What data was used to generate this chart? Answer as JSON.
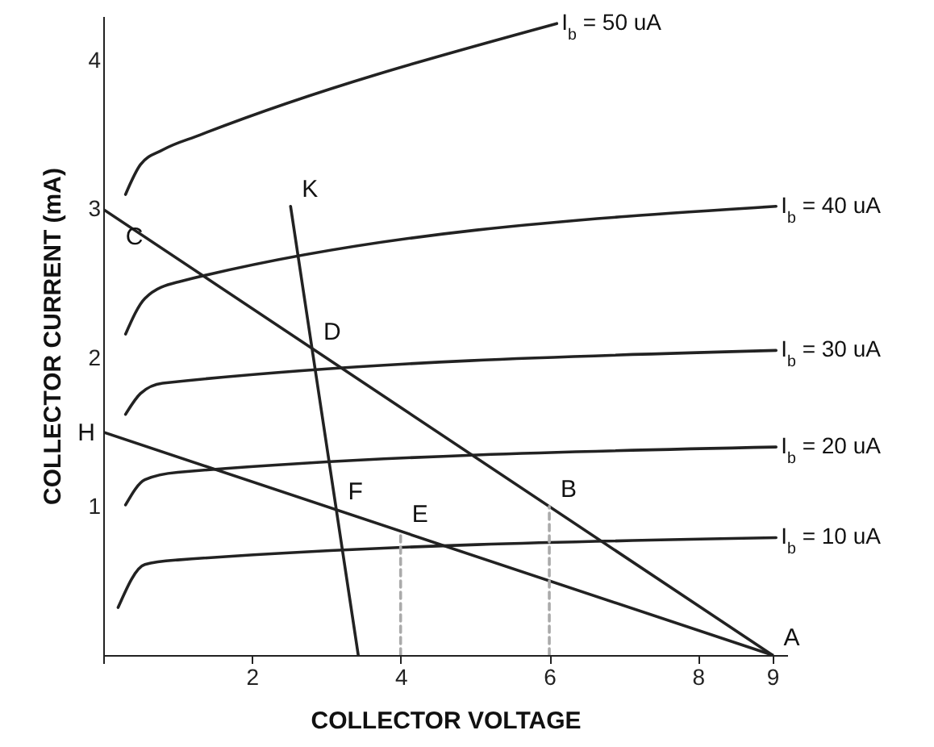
{
  "chart_data": {
    "type": "line",
    "xlabel": "COLLECTOR VOLTAGE",
    "ylabel": "COLLECTOR CURRENT (mA)",
    "xlim": [
      0,
      9.2
    ],
    "ylim": [
      0,
      4.3
    ],
    "xticks": [
      {
        "value": 0,
        "label": null
      },
      2,
      4,
      6,
      8,
      9
    ],
    "yticks": [
      1,
      2,
      3,
      4
    ],
    "grid": false,
    "marker": "none",
    "line_style": "solid",
    "series": [
      {
        "name": "I$_{b}$ = 50 uA",
        "color": "#222222",
        "x": [
          0.3,
          0.5,
          0.8,
          1.3,
          6.1
        ],
        "values": [
          3.1,
          3.3,
          3.4,
          3.5,
          4.25
        ]
      },
      {
        "name": "I$_{b}$ = 40 uA",
        "color": "#222222",
        "x": [
          0.3,
          0.56,
          1.0,
          9.05
        ],
        "values": [
          2.16,
          2.4,
          2.51,
          3.02
        ]
      },
      {
        "name": "I$_{b}$ = 30 uA",
        "color": "#222222",
        "x": [
          0.3,
          0.5,
          0.8,
          9.05
        ],
        "values": [
          1.62,
          1.76,
          1.83,
          2.05
        ]
      },
      {
        "name": "I$_{b}$ = 20 uA",
        "color": "#222222",
        "x": [
          0.3,
          0.56,
          1.0,
          9.05
        ],
        "values": [
          1.01,
          1.18,
          1.23,
          1.4
        ]
      },
      {
        "name": "I$_{b}$ = 10 uA",
        "color": "#222222",
        "x": [
          0.2,
          0.56,
          1.0,
          9.05
        ],
        "values": [
          0.32,
          0.61,
          0.64,
          0.79
        ]
      },
      {
        "color": "#222222",
        "x": [
          0,
          9
        ],
        "values": [
          3,
          0
        ]
      },
      {
        "color": "#222222",
        "x": [
          0,
          9
        ],
        "values": [
          1.5,
          0
        ]
      },
      {
        "color": "#222222",
        "x": [
          2.52,
          3.43
        ],
        "values": [
          3.02,
          0
        ]
      },
      {
        "color": "#aaaaaa",
        "line_style": "dashed",
        "x": [
          4,
          4
        ],
        "values": [
          0,
          0.83
        ]
      },
      {
        "color": "#aaaaaa",
        "line_style": "dashed",
        "x": [
          6,
          6
        ],
        "values": [
          0,
          1
        ]
      }
    ],
    "annotations": [
      {
        "text": "C",
        "x": 0.15,
        "y": 2.95
      },
      {
        "text": "K",
        "x": 2.52,
        "y": 3.02
      },
      {
        "text": "D",
        "x": 2.81,
        "y": 2.06
      },
      {
        "text": "H",
        "x": 0,
        "y": 1.5
      },
      {
        "text": "F",
        "x": 3.14,
        "y": 0.98
      },
      {
        "text": "E",
        "x": 4,
        "y": 0.83
      },
      {
        "text": "B",
        "x": 6,
        "y": 1
      },
      {
        "text": "A",
        "x": 9,
        "y": 0
      }
    ]
  }
}
